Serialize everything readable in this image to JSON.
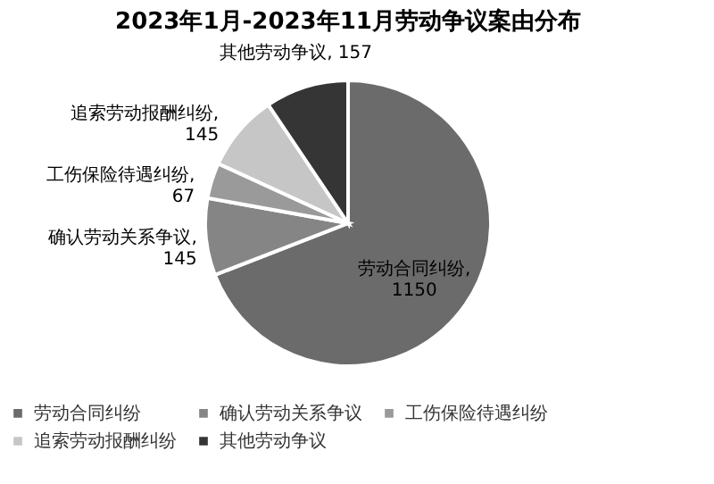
{
  "chart_data": {
    "type": "pie",
    "title": "2023年1月-2023年11月劳动争议案由分布",
    "categories": [
      "劳动合同纠纷",
      "确认劳动关系争议",
      "工伤保险待遇纠纷",
      "追索劳动报酬纠纷",
      "其他劳动争议"
    ],
    "values": [
      1150,
      145,
      67,
      145,
      157
    ],
    "colors": [
      "#6b6b6b",
      "#858585",
      "#9a9a9a",
      "#c6c6c6",
      "#353535"
    ],
    "value_labels": [
      "劳动合同纠纷,\n1150",
      "确认劳动关系争议,\n145",
      "工伤保险待遇纠纷,\n67",
      "追索劳动报酬纠纷,\n145",
      "其他劳动争议, 157"
    ],
    "legend": "bottom"
  }
}
